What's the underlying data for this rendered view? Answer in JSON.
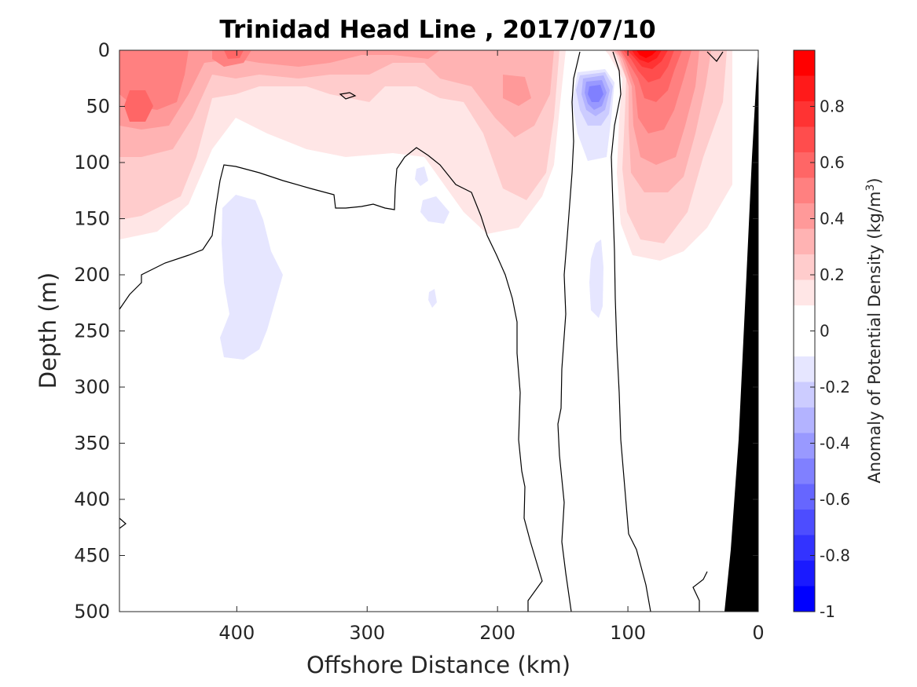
{
  "chart_data": {
    "type": "heatmap",
    "subtype": "filled contour section",
    "title": "Trinidad Head Line , 2017/07/10",
    "xlabel": "Offshore Distance (km)",
    "ylabel": "Depth (m)",
    "xlim": [
      490,
      0
    ],
    "ylim": [
      0,
      500
    ],
    "x_reversed": true,
    "y_reversed": true,
    "xticks": [
      400,
      300,
      200,
      100,
      0
    ],
    "yticks": [
      0,
      50,
      100,
      150,
      200,
      250,
      300,
      350,
      400,
      450,
      500
    ],
    "colorbar": {
      "label_main": "Anomaly of Potential Density (kg/m",
      "label_sup": "3",
      "label_end": ")",
      "range": [
        -1,
        1
      ],
      "level_step": 0.1,
      "ticks": [
        0.8,
        0.6,
        0.4,
        0.2,
        0,
        -0.2,
        -0.4,
        -0.6,
        -0.8,
        -1
      ],
      "colors": [
        "#ff0000",
        "#ff1a1a",
        "#ff3333",
        "#ff4d4d",
        "#ff6666",
        "#ff8080",
        "#ff9999",
        "#ffb3b3",
        "#ffcccc",
        "#ffe6e6",
        "#ffffff",
        "#ffffff",
        "#e6e6ff",
        "#ccccff",
        "#b3b3ff",
        "#9999ff",
        "#8080ff",
        "#6666ff",
        "#4d4dff",
        "#3333ff",
        "#1a1aff",
        "#0000ff"
      ]
    },
    "bathymetry_color": "#000000",
    "features": [
      {
        "label": "positive anomaly near 460 km, ~50 m",
        "value": 0.5
      },
      {
        "label": "positive anomaly near 85 km, surface",
        "value": 0.95
      },
      {
        "label": "negative anomaly near 125 km, ~35 m",
        "value": -0.45
      },
      {
        "label": "weak negative patch near 390 km, 150-270 m",
        "value": -0.1
      }
    ]
  }
}
